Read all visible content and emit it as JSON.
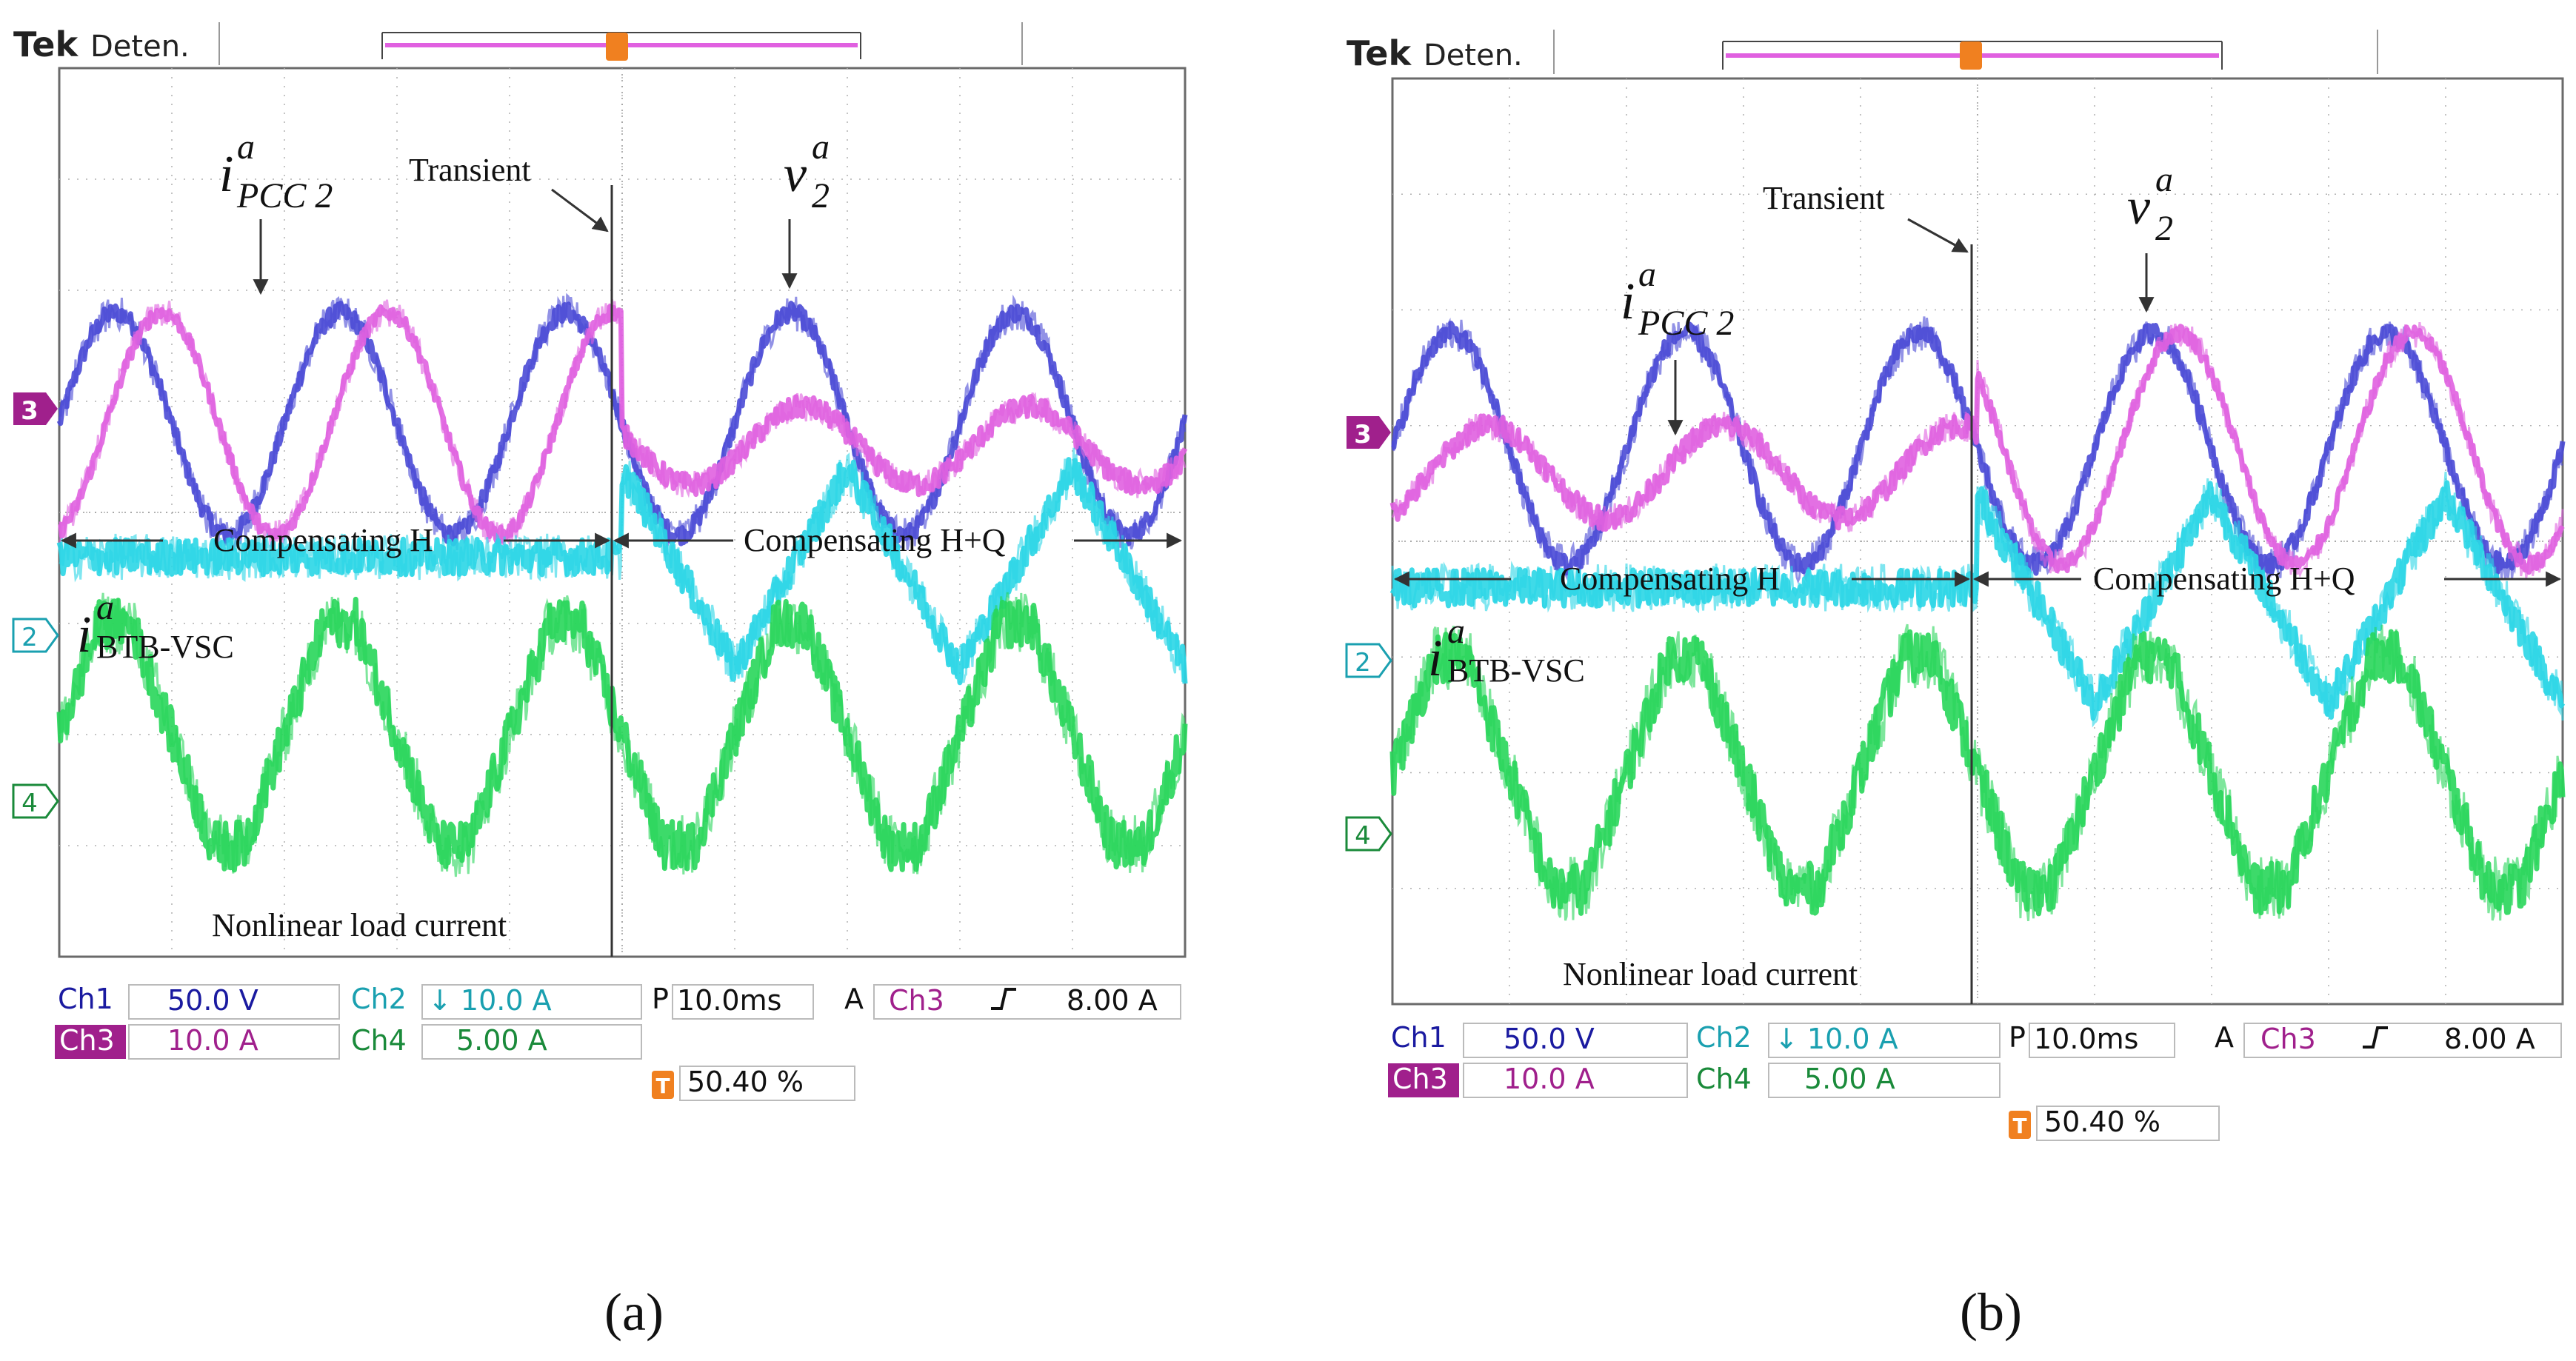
{
  "panels": [
    {
      "id": "a",
      "caption": "(a)",
      "header": {
        "brand": "Tek",
        "mode": "Deten."
      },
      "trigger_marker": "T",
      "annotations": {
        "transient": "Transient",
        "ipcc2": {
          "main": "i",
          "sup": "a",
          "sub": "PCC 2"
        },
        "v2": {
          "main": "v",
          "sup": "a",
          "sub": "2"
        },
        "ibtb": {
          "main": "i",
          "sup": "a",
          "sub": "BTB-VSC"
        },
        "comp_h": "Compensating H",
        "comp_hq": "Compensating H+Q",
        "nonlinear": "Nonlinear load current"
      },
      "channel_markers": [
        "3",
        "2",
        "4"
      ],
      "readouts": {
        "ch1_label": "Ch1",
        "ch1_value": "50.0 V",
        "ch2_label": "Ch2",
        "ch2_value": "↓ 10.0 A",
        "ch3_label": "Ch3",
        "ch3_value": "10.0 A",
        "ch4_label": "Ch4",
        "ch4_value": "5.00 A",
        "timebase_label": "P",
        "timebase_value": "10.0ms",
        "trig_src_label": "A",
        "trig_src": "Ch3",
        "trig_level": "8.00 A",
        "trig_pos": "50.40 %"
      }
    },
    {
      "id": "b",
      "caption": "(b)",
      "header": {
        "brand": "Tek",
        "mode": "Deten."
      },
      "trigger_marker": "T",
      "annotations": {
        "transient": "Transient",
        "ipcc2": {
          "main": "i",
          "sup": "a",
          "sub": "PCC 2"
        },
        "v2": {
          "main": "v",
          "sup": "a",
          "sub": "2"
        },
        "ibtb": {
          "main": "i",
          "sup": "a",
          "sub": "BTB-VSC"
        },
        "comp_h": "Compensating H",
        "comp_hq": "Compensating H+Q",
        "nonlinear": "Nonlinear load current"
      },
      "channel_markers": [
        "3",
        "2",
        "4"
      ],
      "readouts": {
        "ch1_label": "Ch1",
        "ch1_value": "50.0 V",
        "ch2_label": "Ch2",
        "ch2_value": "↓ 10.0 A",
        "ch3_label": "Ch3",
        "ch3_value": "10.0 A",
        "ch4_label": "Ch4",
        "ch4_value": "5.00 A",
        "timebase_label": "P",
        "timebase_value": "10.0ms",
        "trig_src_label": "A",
        "trig_src": "Ch3",
        "trig_level": "8.00 A",
        "trig_pos": "50.40 %"
      }
    }
  ],
  "colors": {
    "ch1": "#4a4ad6",
    "ch2": "#2ad6e6",
    "ch3": "#e060e0",
    "ch4": "#28d65a",
    "ch1_label": "#1a1aa0",
    "ch3_label_bg": "#a0208c",
    "ch2_label": "#1aa0b0",
    "ch4_label": "#1a8a3a",
    "trigger": "#f08020",
    "grid": "#b0b0b0"
  },
  "chart_data": [
    {
      "type": "line",
      "panel": "a",
      "x_unit": "ms",
      "x_range": [
        0,
        100
      ],
      "time_per_div_ms": 10,
      "transient_time_ms": 50,
      "series": [
        {
          "name": "v2a",
          "channel": "Ch1",
          "scale": "50.0 V/div",
          "before": {
            "amp_div": 1.0,
            "offset_div": 0.8,
            "phase_deg": 0
          },
          "after": {
            "amp_div": 1.0,
            "offset_div": 0.8,
            "phase_deg": 0
          },
          "freq_hz": 50
        },
        {
          "name": "iPCC2a",
          "channel": "Ch3",
          "scale": "10.0 A/div",
          "before": {
            "amp_div": 1.0,
            "offset_div": 0.8,
            "phase_deg": -75
          },
          "after": {
            "amp_div": 0.35,
            "offset_div": 0.6,
            "phase_deg": -20
          },
          "freq_hz": 50
        },
        {
          "name": "iBTB-VSCa",
          "channel": "Ch2",
          "scale": "10.0 A/div",
          "before": {
            "amp_div": 0.0,
            "offset_div": -0.4
          },
          "after": {
            "amp_div": 0.9,
            "offset_div": -0.5,
            "shape": "triangle"
          },
          "freq_hz": 50
        },
        {
          "name": "Nonlinear load current",
          "channel": "Ch4",
          "scale": "5.00 A/div",
          "amp_div": 1.0,
          "offset_div": -2.0,
          "shape": "trapezoid",
          "freq_hz": 50
        }
      ]
    },
    {
      "type": "line",
      "panel": "b",
      "x_unit": "ms",
      "x_range": [
        0,
        100
      ],
      "time_per_div_ms": 10,
      "transient_time_ms": 50,
      "series": [
        {
          "name": "v2a",
          "channel": "Ch1",
          "scale": "50.0 V/div",
          "before": {
            "amp_div": 1.0,
            "offset_div": 0.8,
            "phase_deg": 0
          },
          "after": {
            "amp_div": 1.0,
            "offset_div": 0.8,
            "phase_deg": 0
          },
          "freq_hz": 50
        },
        {
          "name": "iPCC2a",
          "channel": "Ch3",
          "scale": "10.0 A/div",
          "before": {
            "amp_div": 0.4,
            "offset_div": 0.6,
            "phase_deg": -60
          },
          "after": {
            "amp_div": 1.0,
            "offset_div": 0.8,
            "phase_deg": -40
          },
          "freq_hz": 50
        },
        {
          "name": "iBTB-VSCa",
          "channel": "Ch2",
          "scale": "10.0 A/div",
          "before": {
            "amp_div": 0.0,
            "offset_div": -0.4
          },
          "after": {
            "amp_div": 0.9,
            "offset_div": -0.5,
            "shape": "triangle"
          },
          "freq_hz": 50
        },
        {
          "name": "Nonlinear load current",
          "channel": "Ch4",
          "scale": "5.00 A/div",
          "amp_div": 1.0,
          "offset_div": -2.0,
          "shape": "trapezoid",
          "freq_hz": 50
        }
      ]
    }
  ]
}
